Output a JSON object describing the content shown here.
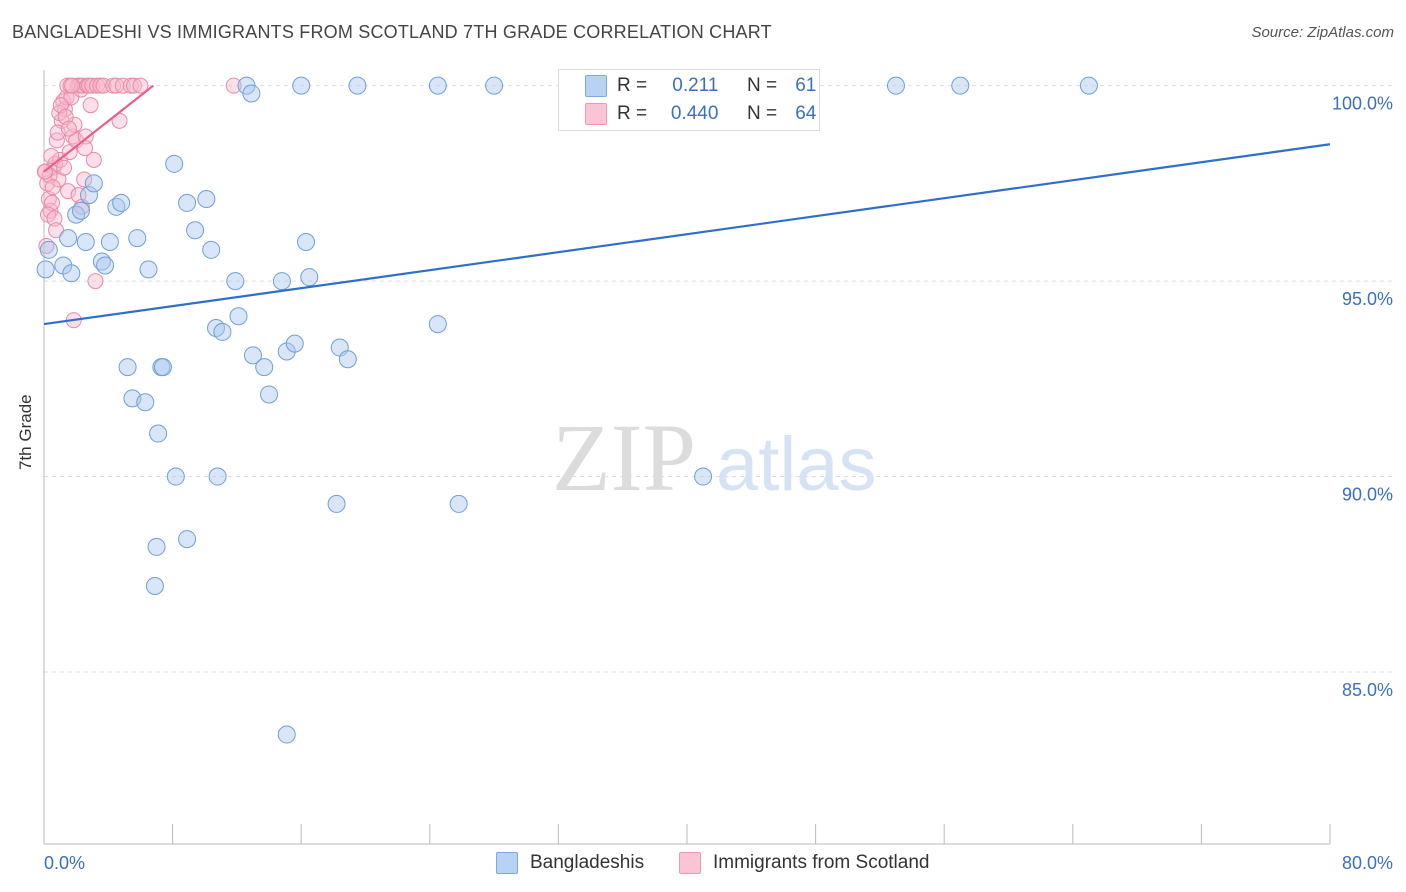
{
  "title": "BANGLADESHI VS IMMIGRANTS FROM SCOTLAND 7TH GRADE CORRELATION CHART",
  "source": "Source: ZipAtlas.com",
  "watermark": {
    "zip": "ZIP",
    "atlas": "atlas"
  },
  "legend": {
    "blue": {
      "r_label": "R =",
      "r_value": "0.211",
      "n_label": "N =",
      "n_value": "61"
    },
    "pink": {
      "r_label": "R =",
      "r_value": "0.440",
      "n_label": "N =",
      "n_value": "64"
    }
  },
  "colors": {
    "blue_fill": "#a8c8f0",
    "blue_stroke": "#6f9fd8",
    "blue_line": "#2f6fcc",
    "pink_fill": "#f8b8cc",
    "pink_stroke": "#e88aa8",
    "pink_line": "#e8608c",
    "tick_label": "#3b6fc4",
    "grid": "#dddddd"
  },
  "chart_data": {
    "type": "scatter",
    "title": "BANGLADESHI VS IMMIGRANTS FROM SCOTLAND 7TH GRADE CORRELATION CHART",
    "xlabel": "",
    "ylabel": "7th Grade",
    "xlim": [
      0,
      80
    ],
    "ylim": [
      80.6,
      100.4
    ],
    "x_tick_labels": [
      "0.0%",
      "80.0%"
    ],
    "y_ticks": [
      100,
      95,
      90,
      85
    ],
    "y_tick_labels": [
      "100.0%",
      "95.0%",
      "90.0%",
      "85.0%"
    ],
    "series": [
      {
        "name": "Bangladeshis",
        "color": "blue",
        "r": 0.211,
        "n": 61,
        "trend": {
          "x": [
            0,
            80
          ],
          "y": [
            93.9,
            98.5
          ]
        },
        "points": [
          [
            0.1,
            95.3
          ],
          [
            0.3,
            95.8
          ],
          [
            1.2,
            95.4
          ],
          [
            1.5,
            96.1
          ],
          [
            1.7,
            95.2
          ],
          [
            2.0,
            96.7
          ],
          [
            2.3,
            96.8
          ],
          [
            2.6,
            96.0
          ],
          [
            2.8,
            97.2
          ],
          [
            3.1,
            97.5
          ],
          [
            3.6,
            95.5
          ],
          [
            3.8,
            95.4
          ],
          [
            4.1,
            96.0
          ],
          [
            4.5,
            96.9
          ],
          [
            4.8,
            97.0
          ],
          [
            5.8,
            96.1
          ],
          [
            6.5,
            95.3
          ],
          [
            7.3,
            92.8
          ],
          [
            7.4,
            92.8
          ],
          [
            8.1,
            98.0
          ],
          [
            8.9,
            97.0
          ],
          [
            9.4,
            96.3
          ],
          [
            10.1,
            97.1
          ],
          [
            10.4,
            95.8
          ],
          [
            10.7,
            93.8
          ],
          [
            11.1,
            93.7
          ],
          [
            11.9,
            95.0
          ],
          [
            12.1,
            94.1
          ],
          [
            12.6,
            100.0
          ],
          [
            12.9,
            99.8
          ],
          [
            13.0,
            93.1
          ],
          [
            13.7,
            92.8
          ],
          [
            14.0,
            92.1
          ],
          [
            14.8,
            95.0
          ],
          [
            15.1,
            93.2
          ],
          [
            15.6,
            93.4
          ],
          [
            16.0,
            100.0
          ],
          [
            16.3,
            96.0
          ],
          [
            16.5,
            95.1
          ],
          [
            18.4,
            93.3
          ],
          [
            18.9,
            93.0
          ],
          [
            19.5,
            100.0
          ],
          [
            24.5,
            93.9
          ],
          [
            24.5,
            100.0
          ],
          [
            28.0,
            100.0
          ],
          [
            5.2,
            92.8
          ],
          [
            5.5,
            92.0
          ],
          [
            6.3,
            91.9
          ],
          [
            7.1,
            91.1
          ],
          [
            8.2,
            90.0
          ],
          [
            10.8,
            90.0
          ],
          [
            18.2,
            89.3
          ],
          [
            25.8,
            89.3
          ],
          [
            8.9,
            88.4
          ],
          [
            7.0,
            88.2
          ],
          [
            6.9,
            87.2
          ],
          [
            41.0,
            90.0
          ],
          [
            53.0,
            100.0
          ],
          [
            57.0,
            100.0
          ],
          [
            65.0,
            100.0
          ],
          [
            15.1,
            83.4
          ]
        ]
      },
      {
        "name": "Immigrants from Scotland",
        "color": "pink",
        "r": 0.44,
        "n": 64,
        "trend": {
          "x": [
            0,
            6.8
          ],
          "y": [
            97.8,
            100.0
          ]
        },
        "points": [
          [
            0.1,
            97.8
          ],
          [
            0.2,
            97.5
          ],
          [
            0.3,
            97.1
          ],
          [
            0.4,
            96.8
          ],
          [
            0.5,
            97.0
          ],
          [
            0.6,
            97.9
          ],
          [
            0.7,
            98.0
          ],
          [
            0.8,
            98.6
          ],
          [
            0.9,
            97.6
          ],
          [
            1.0,
            98.1
          ],
          [
            1.1,
            99.1
          ],
          [
            1.2,
            99.6
          ],
          [
            1.3,
            99.4
          ],
          [
            1.4,
            99.7
          ],
          [
            1.5,
            97.3
          ],
          [
            1.6,
            98.3
          ],
          [
            1.7,
            99.7
          ],
          [
            1.8,
            98.7
          ],
          [
            1.9,
            99.0
          ],
          [
            2.0,
            98.6
          ],
          [
            2.1,
            100.0
          ],
          [
            2.2,
            100.0
          ],
          [
            2.3,
            99.9
          ],
          [
            2.4,
            100.0
          ],
          [
            2.5,
            97.6
          ],
          [
            2.6,
            98.7
          ],
          [
            2.7,
            100.0
          ],
          [
            2.8,
            100.0
          ],
          [
            2.9,
            99.5
          ],
          [
            3.0,
            100.0
          ],
          [
            3.1,
            98.1
          ],
          [
            3.2,
            95.0
          ],
          [
            3.3,
            100.0
          ],
          [
            3.5,
            100.0
          ],
          [
            3.7,
            100.0
          ],
          [
            4.3,
            100.0
          ],
          [
            4.5,
            100.0
          ],
          [
            4.7,
            99.1
          ],
          [
            4.9,
            100.0
          ],
          [
            5.4,
            100.0
          ],
          [
            5.6,
            100.0
          ],
          [
            6.0,
            100.0
          ],
          [
            0.15,
            95.9
          ],
          [
            0.25,
            96.7
          ],
          [
            0.35,
            97.7
          ],
          [
            0.45,
            98.2
          ],
          [
            0.55,
            97.4
          ],
          [
            0.65,
            96.6
          ],
          [
            0.75,
            96.3
          ],
          [
            0.85,
            98.8
          ],
          [
            0.95,
            99.3
          ],
          [
            1.05,
            99.5
          ],
          [
            1.25,
            97.9
          ],
          [
            1.35,
            99.2
          ],
          [
            1.45,
            100.0
          ],
          [
            1.55,
            98.9
          ],
          [
            1.65,
            100.0
          ],
          [
            1.75,
            100.0
          ],
          [
            1.85,
            94.0
          ],
          [
            2.15,
            97.2
          ],
          [
            2.35,
            96.9
          ],
          [
            2.55,
            98.4
          ],
          [
            11.8,
            100.0
          ],
          [
            0.05,
            97.8
          ]
        ]
      }
    ]
  },
  "bottom_legend": [
    "Bangladeshis",
    "Immigrants from Scotland"
  ]
}
